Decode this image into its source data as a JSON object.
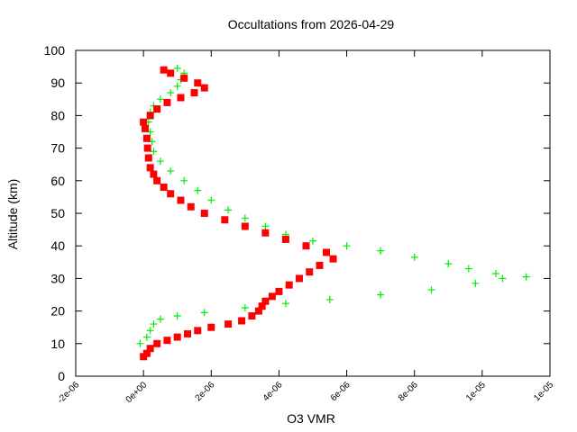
{
  "chart_data": {
    "type": "scatter",
    "title": "Occultations from 2026-04-29",
    "xlabel": "O3 VMR",
    "ylabel": "Altitude (km)",
    "xlim": [
      -2e-06,
      1.2e-05
    ],
    "ylim": [
      0,
      100
    ],
    "x_ticks": [
      -2e-06,
      0,
      2e-06,
      4e-06,
      6e-06,
      8e-06,
      1e-05,
      1.2e-05
    ],
    "x_tick_labels": [
      "-2e-06",
      "0e+00",
      "2e-06",
      "4e-06",
      "6e-06",
      "8e-06",
      "1e-05",
      "1e-05"
    ],
    "y_ticks": [
      0,
      10,
      20,
      30,
      40,
      50,
      60,
      70,
      80,
      90,
      100
    ],
    "y_tick_labels": [
      "0",
      "10",
      "20",
      "30",
      "40",
      "50",
      "60",
      "70",
      "80",
      "90",
      "100"
    ],
    "grid": false,
    "legend": "none",
    "series": [
      {
        "marker": "plus",
        "color": "#00ee00",
        "points": [
          [
            -1e-07,
            10
          ],
          [
            1e-07,
            12
          ],
          [
            2e-07,
            14
          ],
          [
            3e-07,
            16
          ],
          [
            5e-07,
            17.5
          ],
          [
            1e-06,
            18.5
          ],
          [
            1.8e-06,
            19.5
          ],
          [
            3e-06,
            21
          ],
          [
            4.2e-06,
            22.3
          ],
          [
            5.5e-06,
            23.5
          ],
          [
            7e-06,
            25
          ],
          [
            8.5e-06,
            26.5
          ],
          [
            9.8e-06,
            28.5
          ],
          [
            1.06e-05,
            30
          ],
          [
            1.13e-05,
            30.5
          ],
          [
            1.04e-05,
            31.5
          ],
          [
            9.6e-06,
            33
          ],
          [
            9e-06,
            34.5
          ],
          [
            8e-06,
            36.5
          ],
          [
            7e-06,
            38.5
          ],
          [
            6e-06,
            40
          ],
          [
            5e-06,
            41.5
          ],
          [
            4.2e-06,
            43.5
          ],
          [
            3.6e-06,
            46
          ],
          [
            3e-06,
            48.5
          ],
          [
            2.5e-06,
            51
          ],
          [
            2e-06,
            54
          ],
          [
            1.6e-06,
            57
          ],
          [
            1.2e-06,
            60
          ],
          [
            8e-07,
            63
          ],
          [
            5e-07,
            66
          ],
          [
            3e-07,
            69
          ],
          [
            2.5e-07,
            72
          ],
          [
            2e-07,
            75
          ],
          [
            1.5e-07,
            78
          ],
          [
            2e-07,
            81
          ],
          [
            3e-07,
            83
          ],
          [
            5e-07,
            85
          ],
          [
            8e-07,
            87
          ],
          [
            1e-06,
            89
          ],
          [
            1.1e-06,
            91
          ],
          [
            1.2e-06,
            93
          ],
          [
            1e-06,
            94.5
          ]
        ]
      },
      {
        "marker": "square",
        "color": "#ff0000",
        "points": [
          [
            0,
            6
          ],
          [
            1e-07,
            7
          ],
          [
            2e-07,
            8.5
          ],
          [
            4e-07,
            10
          ],
          [
            7e-07,
            11
          ],
          [
            1e-06,
            12
          ],
          [
            1.3e-06,
            13
          ],
          [
            1.6e-06,
            14
          ],
          [
            2e-06,
            15
          ],
          [
            2.5e-06,
            16
          ],
          [
            2.9e-06,
            17
          ],
          [
            3.2e-06,
            18.5
          ],
          [
            3.4e-06,
            20
          ],
          [
            3.5e-06,
            21.5
          ],
          [
            3.6e-06,
            23
          ],
          [
            3.8e-06,
            24.5
          ],
          [
            4e-06,
            26
          ],
          [
            4.3e-06,
            28
          ],
          [
            4.6e-06,
            30
          ],
          [
            4.9e-06,
            32
          ],
          [
            5.2e-06,
            34
          ],
          [
            5.6e-06,
            36
          ],
          [
            5.4e-06,
            38
          ],
          [
            4.8e-06,
            40
          ],
          [
            4.2e-06,
            42
          ],
          [
            3.6e-06,
            44
          ],
          [
            3e-06,
            46
          ],
          [
            2.4e-06,
            48
          ],
          [
            1.8e-06,
            50
          ],
          [
            1.4e-06,
            52
          ],
          [
            1.1e-06,
            54
          ],
          [
            8e-07,
            56
          ],
          [
            6e-07,
            58
          ],
          [
            4e-07,
            60
          ],
          [
            3e-07,
            62
          ],
          [
            2e-07,
            64
          ],
          [
            1.5e-07,
            67
          ],
          [
            1.2e-07,
            70
          ],
          [
            1e-07,
            73
          ],
          [
            5e-08,
            76
          ],
          [
            0,
            78
          ],
          [
            2e-07,
            80
          ],
          [
            4e-07,
            82
          ],
          [
            7e-07,
            84
          ],
          [
            1.1e-06,
            85.5
          ],
          [
            1.5e-06,
            87
          ],
          [
            1.8e-06,
            88.5
          ],
          [
            1.6e-06,
            90
          ],
          [
            1.2e-06,
            91.5
          ],
          [
            8e-07,
            93
          ],
          [
            6e-07,
            94
          ]
        ]
      }
    ]
  }
}
